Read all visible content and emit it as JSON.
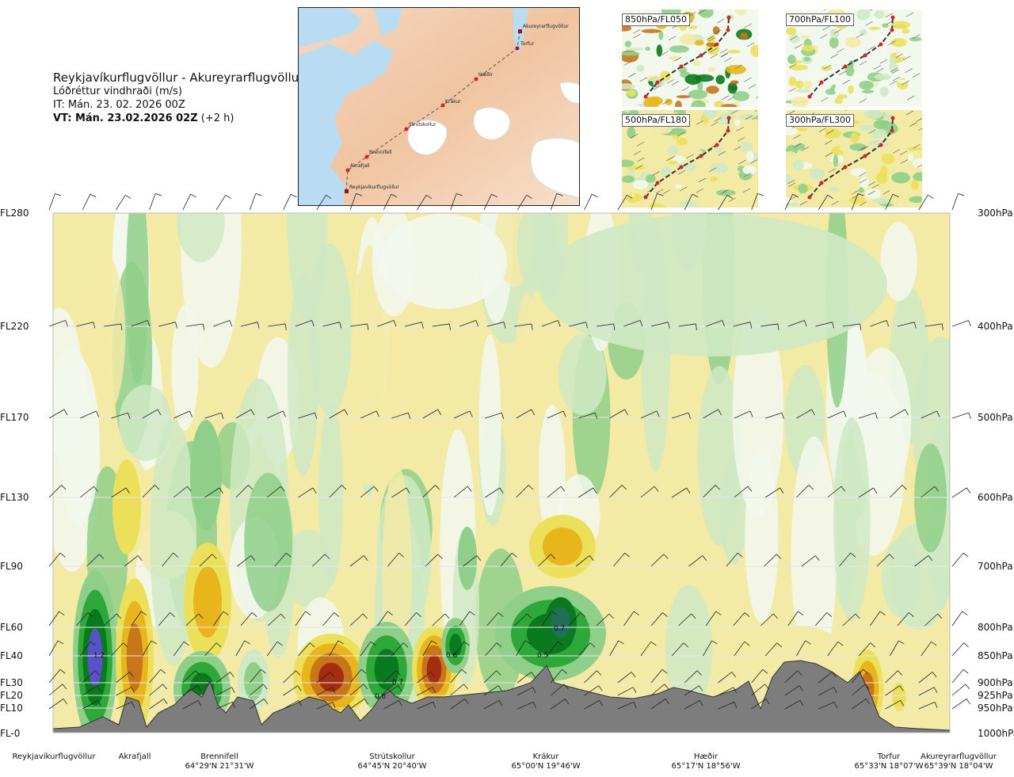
{
  "header": {
    "route": "Reykjavíkurflugvöllur - Akureyrarflugvöllur",
    "parameter": "Lóðréttur vindhraði (m/s)",
    "issue_time": "IT: Mán. 23. 02. 2026 00Z",
    "valid_time_bold": "VT: Mán. 23.02.2026 02Z",
    "valid_offset": "(+2 h)"
  },
  "map": {
    "places": [
      "Akureyrarflugvöllur",
      "Torfur",
      "Hæðir",
      "Krákur",
      "Strútskollur",
      "Brennifell",
      "Akrafjall",
      "Reykjavíkurflugvöllur"
    ]
  },
  "mini_maps": [
    {
      "label": "850hPa/FL050"
    },
    {
      "label": "700hPa/FL100"
    },
    {
      "label": "500hPa/FL180"
    },
    {
      "label": "300hPa/FL300"
    }
  ],
  "colors": {
    "strong_down": "#5a50c8",
    "down_dark": "#0a7a1e",
    "down_med": "#2fa83a",
    "down_light": "#8fcf8a",
    "down_pale": "#cfe9c4",
    "neutral": "#f2f8ee",
    "up_pale": "#f3eaa6",
    "up_light": "#ece05a",
    "up_med": "#e8b61c",
    "up_strong": "#c8761a",
    "up_dark": "#a52d12",
    "terrain": "#7d7d7d"
  },
  "chart_data": {
    "type": "heatmap",
    "y_left_ticks": [
      "FL280",
      "FL220",
      "FL170",
      "FL130",
      "FL90",
      "FL60",
      "FL40",
      "FL30",
      "FL20",
      "FL10",
      "FL-0"
    ],
    "y_right_ticks": [
      "300hPa",
      "400hPa",
      "500hPa",
      "600hPa",
      "700hPa",
      "800hPa",
      "850hPa",
      "900hPa",
      "925hPa",
      "950hPa",
      "1000hPa"
    ],
    "waypoints": [
      {
        "name": "Reykjavíkurflugvöllur",
        "coord": ""
      },
      {
        "name": "Akrafjall",
        "coord": ""
      },
      {
        "name": "Brennifell",
        "coord": "64°29'N 21°31'W"
      },
      {
        "name": "Strútskollur",
        "coord": "64°45'N 20°40'W"
      },
      {
        "name": "Krákur",
        "coord": "65°00'N 19°46'W"
      },
      {
        "name": "Hæðir",
        "coord": "65°17'N 18°56'W"
      },
      {
        "name": "Torfur",
        "coord": "65°33'N 18°07'W"
      },
      {
        "name": "Akureyrarflugvöllur",
        "coord": "65°39'N 18°04'W"
      }
    ],
    "value_labels": [
      "1.2",
      "0.6",
      "0.7",
      "0.6",
      "0.5",
      "0.7"
    ]
  }
}
